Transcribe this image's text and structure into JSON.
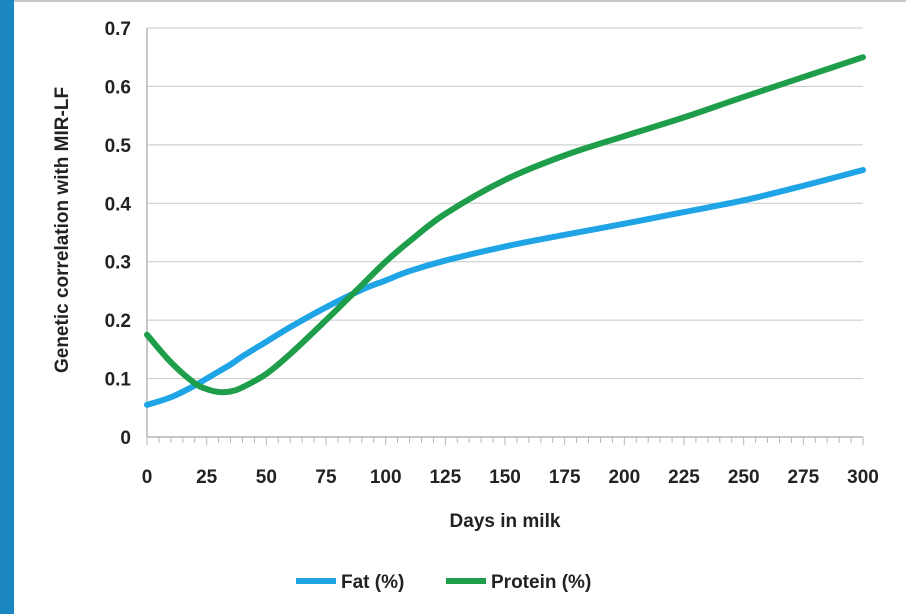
{
  "chart_data": {
    "type": "line",
    "xlabel": "Days in milk",
    "ylabel": "Genetic correlation with MIR-LF",
    "xlim": [
      0,
      300
    ],
    "ylim": [
      0,
      0.7
    ],
    "x_ticks": [
      0,
      25,
      50,
      75,
      100,
      125,
      150,
      175,
      200,
      225,
      250,
      275,
      300
    ],
    "y_ticks": [
      0,
      0.1,
      0.2,
      0.3,
      0.4,
      0.5,
      0.6,
      0.7
    ],
    "grid": "horizontal",
    "legend_position": "bottom",
    "x": [
      0,
      10,
      20,
      25,
      30,
      35,
      40,
      50,
      60,
      75,
      90,
      100,
      110,
      125,
      150,
      175,
      200,
      225,
      250,
      275,
      300
    ],
    "series": [
      {
        "name": "Fat (%)",
        "color": "#1fa4e6",
        "values": [
          0.055,
          0.068,
          0.088,
          0.1,
          0.112,
          0.124,
          0.138,
          0.163,
          0.188,
          0.222,
          0.252,
          0.268,
          0.284,
          0.302,
          0.326,
          0.346,
          0.365,
          0.385,
          0.405,
          0.43,
          0.457
        ]
      },
      {
        "name": "Protein (%)",
        "color": "#1e9e4a",
        "values": [
          0.175,
          0.128,
          0.092,
          0.082,
          0.077,
          0.078,
          0.085,
          0.108,
          0.142,
          0.2,
          0.26,
          0.3,
          0.335,
          0.382,
          0.44,
          0.482,
          0.515,
          0.547,
          0.582,
          0.616,
          0.65
        ]
      }
    ]
  }
}
